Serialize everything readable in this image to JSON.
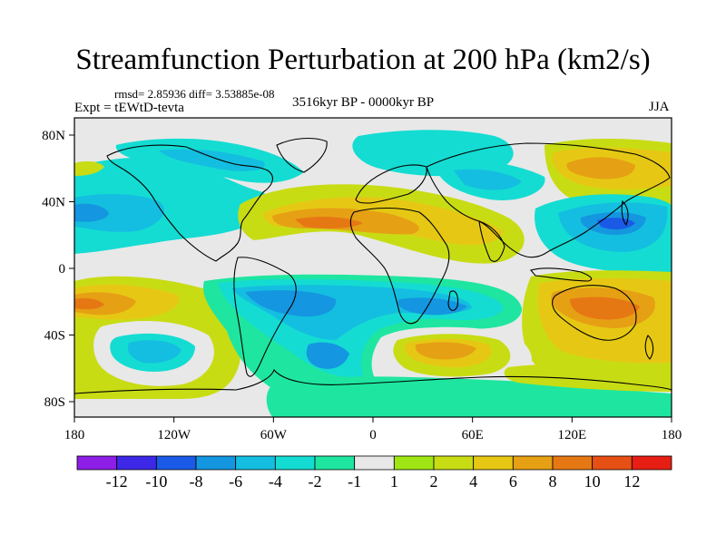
{
  "title": "Streamfunction Perturbation at 200 hPa (km2/s)",
  "stats": "rmsd= 2.85936 diff= 3.53885e-08",
  "experiment": "Expt = tEWtD-tevta",
  "period": "3516kyr BP - 0000kyr BP",
  "season": "JJA",
  "map": {
    "background_color": "#e8e8e8",
    "y_ticks": [
      {
        "label": "80N",
        "lat": 80
      },
      {
        "label": "40N",
        "lat": 40
      },
      {
        "label": "0",
        "lat": 0
      },
      {
        "label": "40S",
        "lat": -40
      },
      {
        "label": "80S",
        "lat": -80
      }
    ],
    "x_ticks": [
      {
        "label": "180",
        "lon": -180
      },
      {
        "label": "120W",
        "lon": -120
      },
      {
        "label": "60W",
        "lon": -60
      },
      {
        "label": "0",
        "lon": 0
      },
      {
        "label": "60E",
        "lon": 60
      },
      {
        "label": "120E",
        "lon": 120
      },
      {
        "label": "180",
        "lon": 180
      }
    ]
  },
  "colorbar": {
    "colors": [
      "#8c1ee6",
      "#3c28e6",
      "#1a5ae6",
      "#1496e0",
      "#14bee0",
      "#14dcd2",
      "#1ee6a0",
      "#e8e8e8",
      "#a0e614",
      "#c8dc14",
      "#e6c814",
      "#e6a014",
      "#e67814",
      "#e65014",
      "#e61e14"
    ],
    "labels": [
      "-12",
      "-10",
      "-8",
      "-6",
      "-4",
      "-2",
      "-1",
      "1",
      "2",
      "4",
      "6",
      "8",
      "10",
      "12"
    ]
  }
}
